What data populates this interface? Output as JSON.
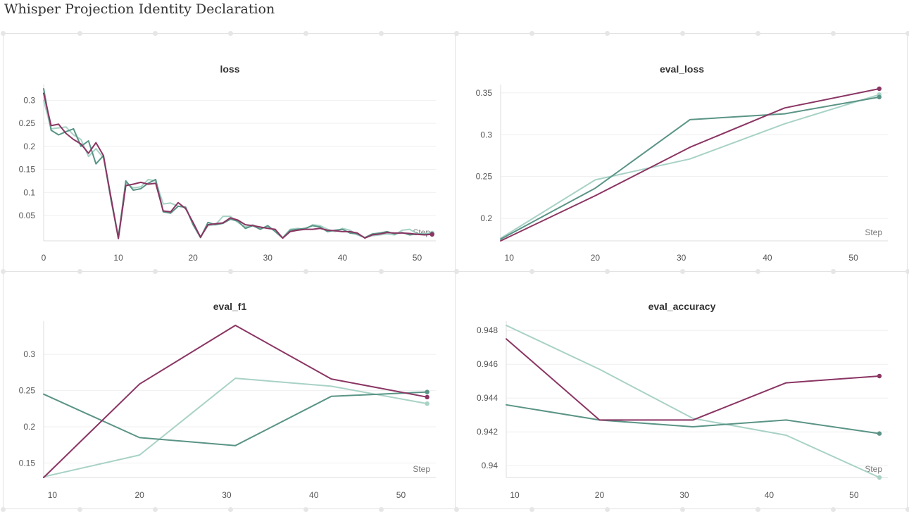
{
  "report": {
    "title": "Whisper Projection Identity Declaration"
  },
  "colors": {
    "maroon": "#8a3563",
    "teal": "#5a9486",
    "lightTeal": "#a8d2c6"
  },
  "chart_data": [
    {
      "type": "line",
      "title": "loss",
      "xlabel": "Step",
      "ylabel": "",
      "xlim": [
        0,
        52.5
      ],
      "ylim": [
        -0.005,
        0.325
      ],
      "xticks": [
        0,
        10,
        20,
        30,
        40,
        50
      ],
      "yticks": [
        0.05,
        0.1,
        0.15,
        0.2,
        0.25,
        0.3
      ],
      "ytick_labels": [
        "0.05",
        "0.1",
        "0.15",
        "0.2",
        "0.25",
        "0.3"
      ],
      "grid": true,
      "series": [
        {
          "color": "#8a3563",
          "x": [
            0,
            1,
            2,
            3,
            4,
            5,
            6,
            7,
            8,
            9,
            10,
            11,
            12,
            13,
            14,
            15,
            16,
            17,
            18,
            19,
            20,
            21,
            22,
            23,
            24,
            25,
            26,
            27,
            28,
            29,
            30,
            31,
            32,
            33,
            34,
            35,
            36,
            37,
            38,
            39,
            40,
            41,
            42,
            43,
            44,
            45,
            46,
            47,
            48,
            49,
            50,
            51,
            52
          ],
          "y": [
            0.315,
            0.245,
            0.248,
            0.228,
            0.215,
            0.205,
            0.185,
            0.208,
            0.18,
            0.09,
            0.0,
            0.115,
            0.118,
            0.122,
            0.118,
            0.12,
            0.06,
            0.058,
            0.078,
            0.065,
            0.035,
            0.003,
            0.03,
            0.032,
            0.034,
            0.045,
            0.04,
            0.03,
            0.028,
            0.025,
            0.022,
            0.02,
            0.001,
            0.015,
            0.018,
            0.02,
            0.02,
            0.022,
            0.018,
            0.017,
            0.015,
            0.015,
            0.012,
            0.001,
            0.008,
            0.01,
            0.013,
            0.012,
            0.012,
            0.011,
            0.009,
            0.008,
            0.009
          ]
        },
        {
          "color": "#5a9486",
          "x": [
            0,
            1,
            2,
            3,
            4,
            5,
            6,
            7,
            8,
            9,
            10,
            11,
            12,
            13,
            14,
            15,
            16,
            17,
            18,
            19,
            20,
            21,
            22,
            23,
            24,
            25,
            26,
            27,
            28,
            29,
            30,
            31,
            32,
            33,
            34,
            35,
            36,
            37,
            38,
            39,
            40,
            41,
            42,
            43,
            44,
            45,
            46,
            47,
            48,
            49,
            50,
            51,
            52
          ],
          "y": [
            0.325,
            0.235,
            0.225,
            0.232,
            0.238,
            0.2,
            0.212,
            0.162,
            0.18,
            0.085,
            0.002,
            0.125,
            0.105,
            0.108,
            0.12,
            0.128,
            0.058,
            0.055,
            0.07,
            0.068,
            0.03,
            0.002,
            0.035,
            0.03,
            0.033,
            0.042,
            0.038,
            0.022,
            0.028,
            0.02,
            0.028,
            0.015,
            0.001,
            0.018,
            0.02,
            0.022,
            0.028,
            0.025,
            0.015,
            0.018,
            0.02,
            0.012,
            0.01,
            0.002,
            0.01,
            0.012,
            0.015,
            0.01,
            0.013,
            0.008,
            0.01,
            0.009,
            0.01
          ]
        },
        {
          "color": "#a8d2c6",
          "x": [
            0,
            1,
            2,
            3,
            4,
            5,
            6,
            7,
            8,
            9,
            10,
            11,
            12,
            13,
            14,
            15,
            16,
            17,
            18,
            19,
            20,
            21,
            22,
            23,
            24,
            25,
            26,
            27,
            28,
            29,
            30,
            31,
            32,
            33,
            34,
            35,
            36,
            37,
            38,
            39,
            40,
            41,
            42,
            43,
            44,
            45,
            46,
            47,
            48,
            49,
            50,
            51,
            52
          ],
          "y": [
            0.3,
            0.238,
            0.24,
            0.242,
            0.225,
            0.215,
            0.178,
            0.195,
            0.175,
            0.09,
            0.005,
            0.12,
            0.11,
            0.112,
            0.128,
            0.125,
            0.075,
            0.077,
            0.07,
            0.068,
            0.032,
            0.004,
            0.028,
            0.03,
            0.048,
            0.048,
            0.035,
            0.025,
            0.03,
            0.022,
            0.025,
            0.018,
            0.002,
            0.02,
            0.022,
            0.02,
            0.03,
            0.028,
            0.02,
            0.015,
            0.022,
            0.018,
            0.008,
            0.002,
            0.006,
            0.008,
            0.01,
            0.008,
            0.018,
            0.02,
            0.01,
            0.011,
            0.012
          ]
        }
      ]
    },
    {
      "type": "line",
      "title": "eval_loss",
      "xlabel": "Step",
      "ylabel": "",
      "xlim": [
        9,
        54
      ],
      "ylim": [
        0.173,
        0.355
      ],
      "xticks": [
        10,
        20,
        30,
        40,
        50
      ],
      "yticks": [
        0.2,
        0.25,
        0.3,
        0.35
      ],
      "ytick_labels": [
        "0.2",
        "0.25",
        "0.3",
        "0.35"
      ],
      "grid": true,
      "series": [
        {
          "color": "#8a3563",
          "x": [
            9,
            20,
            31,
            42,
            53
          ],
          "y": [
            0.173,
            0.227,
            0.285,
            0.332,
            0.355
          ]
        },
        {
          "color": "#5a9486",
          "x": [
            9,
            20,
            31,
            42,
            53
          ],
          "y": [
            0.175,
            0.236,
            0.318,
            0.325,
            0.345
          ]
        },
        {
          "color": "#a8d2c6",
          "x": [
            9,
            20,
            31,
            42,
            53
          ],
          "y": [
            0.176,
            0.246,
            0.271,
            0.313,
            0.348
          ]
        }
      ]
    },
    {
      "type": "line",
      "title": "eval_f1",
      "xlabel": "Step",
      "ylabel": "",
      "xlim": [
        9,
        54
      ],
      "ylim": [
        0.13,
        0.34
      ],
      "xticks": [
        10,
        20,
        30,
        40,
        50
      ],
      "yticks": [
        0.15,
        0.2,
        0.25,
        0.3
      ],
      "ytick_labels": [
        "0.15",
        "0.2",
        "0.25",
        "0.3"
      ],
      "grid": true,
      "series": [
        {
          "color": "#8a3563",
          "x": [
            9,
            20,
            31,
            42,
            53
          ],
          "y": [
            0.13,
            0.259,
            0.34,
            0.266,
            0.241
          ]
        },
        {
          "color": "#5a9486",
          "x": [
            9,
            20,
            31,
            42,
            53
          ],
          "y": [
            0.245,
            0.185,
            0.174,
            0.242,
            0.248
          ]
        },
        {
          "color": "#a8d2c6",
          "x": [
            9,
            20,
            31,
            42,
            53
          ],
          "y": [
            0.131,
            0.161,
            0.267,
            0.256,
            0.232
          ]
        }
      ]
    },
    {
      "type": "line",
      "title": "eval_accuracy",
      "xlabel": "Step",
      "ylabel": "",
      "xlim": [
        9,
        54
      ],
      "ylim": [
        0.9393,
        0.9483
      ],
      "xticks": [
        10,
        20,
        30,
        40,
        50
      ],
      "yticks": [
        0.94,
        0.942,
        0.944,
        0.946,
        0.948
      ],
      "ytick_labels": [
        "0.94",
        "0.942",
        "0.944",
        "0.946",
        "0.948"
      ],
      "grid": true,
      "series": [
        {
          "color": "#8a3563",
          "x": [
            9,
            20,
            31,
            42,
            53
          ],
          "y": [
            0.9475,
            0.9427,
            0.9427,
            0.9449,
            0.9453
          ]
        },
        {
          "color": "#5a9486",
          "x": [
            9,
            20,
            31,
            42,
            53
          ],
          "y": [
            0.9436,
            0.9427,
            0.9423,
            0.9427,
            0.9419
          ]
        },
        {
          "color": "#a8d2c6",
          "x": [
            9,
            20,
            31,
            42,
            53
          ],
          "y": [
            0.9483,
            0.9457,
            0.9428,
            0.9418,
            0.9393
          ]
        }
      ]
    }
  ]
}
